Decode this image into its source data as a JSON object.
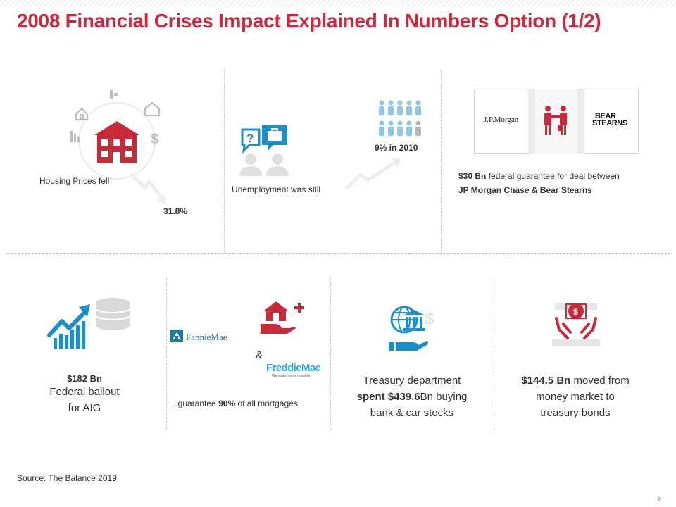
{
  "title": "2008 Financial Crises Impact Explained In Numbers Option (1/2)",
  "colors": {
    "accent": "#d0273b",
    "teal": "#1a8fc9",
    "light_teal": "#8cc8e6",
    "gray": "#cfcfcf"
  },
  "housing": {
    "label": "Housing Prices fell",
    "value": "31.8%"
  },
  "unemployment": {
    "label": "Unemployment was still",
    "value": "9% in 2010"
  },
  "jpmorgan": {
    "logo_left": "J.P.Morgan",
    "logo_right_1": "BEAR",
    "logo_right_2": "STEARNS",
    "amount": "$30 Bn",
    "text_1": " federal guarantee for deal between",
    "text_2": "JP Morgan Chase & Bear Stearns"
  },
  "aig": {
    "amount": "$182 Bn",
    "line1": "Federal bailout",
    "line2": "for AIG"
  },
  "mortgages": {
    "fannie": "FannieMae",
    "amp": "&",
    "freddie": "FreddieMac",
    "freddie_tag": "We make home possible",
    "prefix": "..guarantee ",
    "pct": "90%",
    "suffix": " of all mortgages"
  },
  "treasury": {
    "line1": "Treasury department",
    "spent": "spent $439.6",
    "line2_rest": "Bn buying",
    "line3": "bank & car stocks"
  },
  "money_market": {
    "amount": "$144.5 Bn",
    "line1_rest": " moved from",
    "line2": "money market to",
    "line3": "treasury bonds"
  },
  "source": "Source: The Balance 2019",
  "page_number": "2"
}
